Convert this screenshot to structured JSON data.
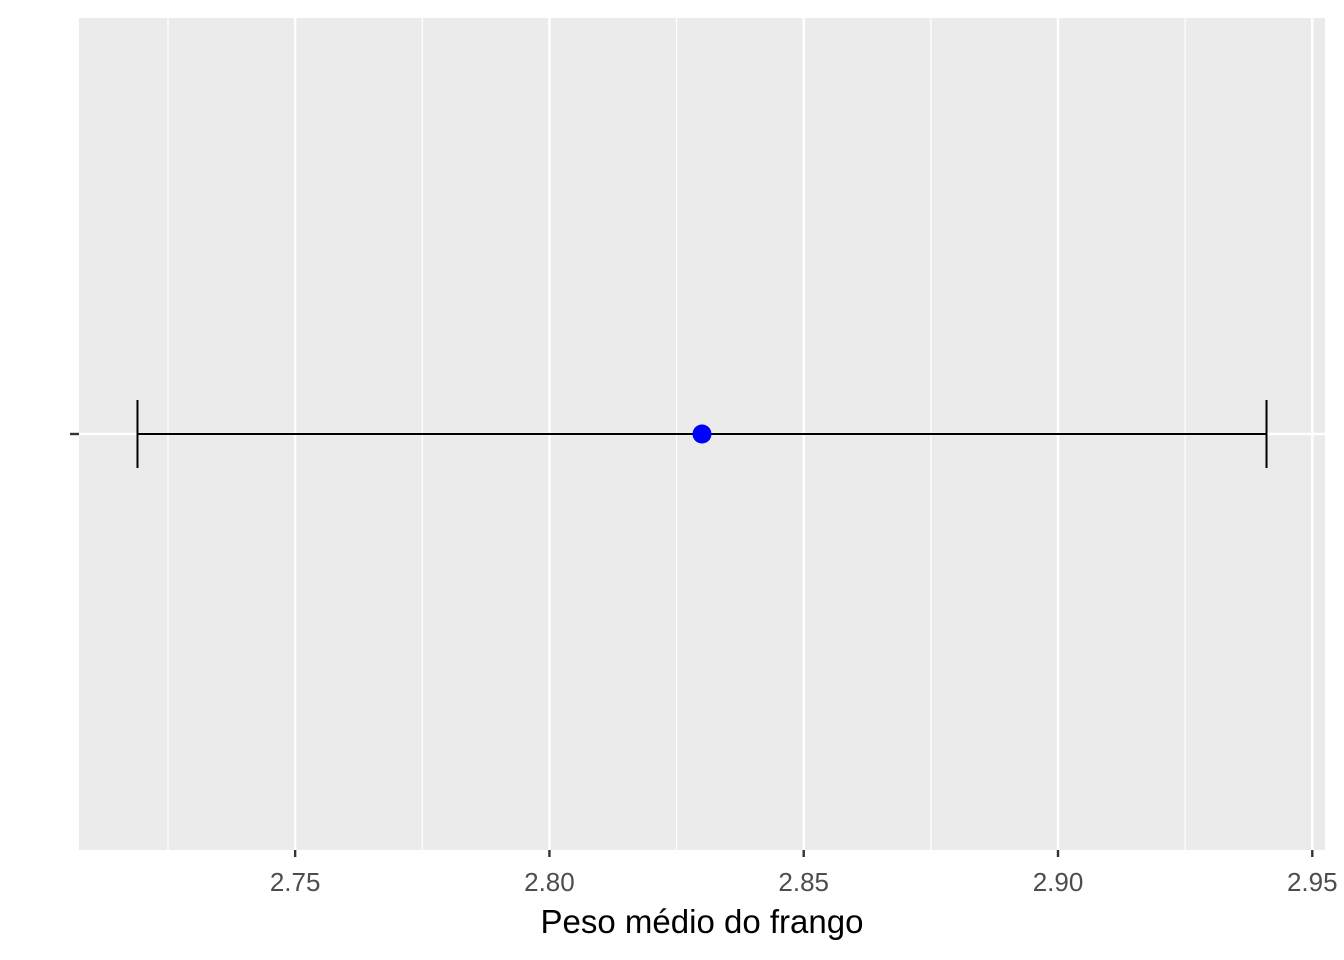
{
  "chart_data": {
    "type": "errorbar",
    "xlabel": "Peso médio do frango",
    "ylabel": "",
    "xlim": [
      2.7075,
      2.9525
    ],
    "x_ticks": [
      {
        "value": 2.75,
        "label": "2.75"
      },
      {
        "value": 2.8,
        "label": "2.80"
      },
      {
        "value": 2.85,
        "label": "2.85"
      },
      {
        "value": 2.9,
        "label": "2.90"
      },
      {
        "value": 2.95,
        "label": "2.95"
      }
    ],
    "grid": true,
    "background": "#ebebeb",
    "gridline_color": "#ffffff",
    "point": {
      "x": 2.83,
      "color": "#0000ff"
    },
    "interval": {
      "lower": 2.719,
      "upper": 2.941,
      "color": "#000000"
    }
  }
}
